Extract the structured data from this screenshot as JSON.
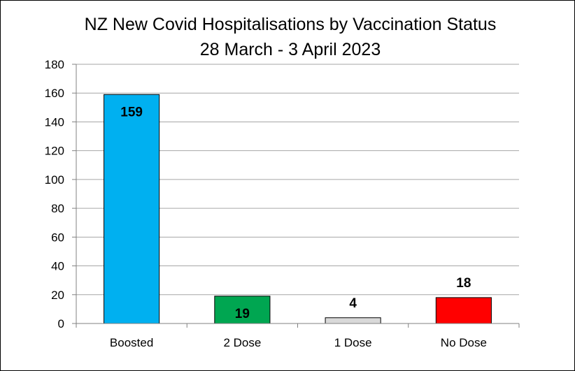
{
  "chart_data": {
    "type": "bar",
    "title": "NZ New Covid Hospitalisations by Vaccination Status",
    "subtitle": "28 March - 3 April 2023",
    "categories": [
      "Boosted",
      "2 Dose",
      "1 Dose",
      "No Dose"
    ],
    "values": [
      159,
      19,
      4,
      18
    ],
    "data_labels": [
      "159",
      "19",
      "4",
      "18"
    ],
    "label_inside": [
      true,
      true,
      false,
      false
    ],
    "colors": [
      "#00b0f0",
      "#00a651",
      "#d9d9d9",
      "#ff0000"
    ],
    "xlabel": "",
    "ylabel": "",
    "ylim": [
      0,
      180
    ],
    "yticks": [
      0,
      20,
      40,
      60,
      80,
      100,
      120,
      140,
      160,
      180
    ],
    "grid": true,
    "legend": "none"
  }
}
